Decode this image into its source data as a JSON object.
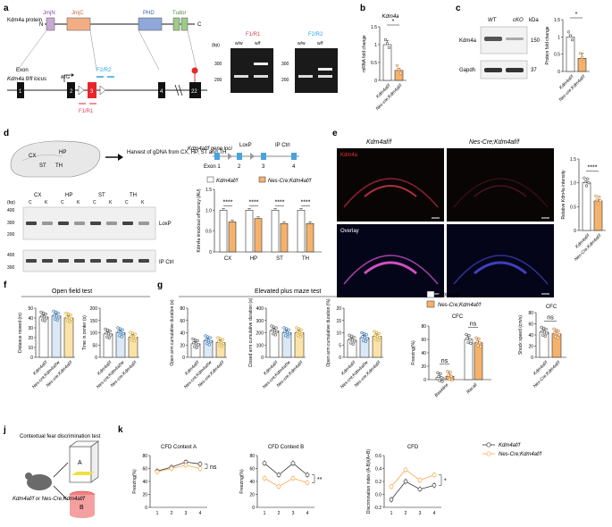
{
  "panels": {
    "a": "a",
    "b": "b",
    "c": "c",
    "d": "d",
    "e": "e",
    "f": "f",
    "g": "g",
    "h": "h",
    "i": "i",
    "j": "j",
    "k": "k"
  },
  "a": {
    "protein_label": "Kdm4a protein",
    "n": "N",
    "c": "C",
    "domains": [
      "JmjN",
      "JmjC",
      "PHD",
      "Tudor"
    ],
    "locus_label": "Kdm4a fl/fl locus",
    "exon": "Exon",
    "atg": "ATG",
    "exons": [
      "1",
      "2",
      "3",
      "4",
      "22"
    ],
    "primer_f2r2": "F2/R2",
    "primer_f1r1": "F1/R1",
    "gel_f1r1_title": "F1/R1",
    "gel_f2r2_title": "F2/R2",
    "gel_lanes": [
      "w/w",
      "w/f"
    ],
    "bp": "(bp)",
    "bp_ticks": [
      "300",
      "200",
      "300",
      "200"
    ]
  },
  "b": {
    "title": "Kdm4a",
    "ylabel": "mRNA fold change",
    "yticks": [
      "0",
      "0.5",
      "1",
      "1.5"
    ],
    "sig": "*",
    "groups": [
      "Kdm4af/f",
      "Nes-cre;Kdm4af/f"
    ]
  },
  "c": {
    "wt": "WT",
    "cko": "cKO",
    "kda": "kDa",
    "row1": "Kdm4a",
    "row2": "Gapdh",
    "mw1": "150",
    "mw2": "37",
    "ylabel": "Protein fold change",
    "yticks": [
      "0",
      "0.5",
      "1",
      "1.5"
    ],
    "sig": "*",
    "groups": [
      "Kdm4af/f",
      "Nes-cre;Kdm4af/f"
    ]
  },
  "d": {
    "regions": [
      "CX",
      "HP",
      "ST",
      "TH"
    ],
    "harvest": "Harvest of gDNA from CX, HP, ST and TH",
    "gene_loci": "Kdm4af/f gene loci",
    "loxp": "LoxP",
    "ipctrl": "IP Ctrl",
    "exon_row": [
      "Exon 1",
      "2",
      "3",
      "4"
    ],
    "gel_lanes": [
      "C",
      "K",
      "C",
      "K",
      "C",
      "K",
      "C",
      "K"
    ],
    "bp": "(bp)",
    "bp_ticks": [
      "400",
      "300",
      "200",
      "400",
      "300"
    ],
    "gel_labels": [
      "LoxP",
      "IP Ctrl"
    ],
    "legend": [
      "Kdm4af/f",
      "Nes-Cre;Kdm4af/f"
    ],
    "ylabel": "Kdm4a knockout efficiency (AU)",
    "yticks": [
      "0",
      "0.5",
      "1.0",
      "1.5"
    ],
    "sig": [
      "****",
      "****",
      "****",
      "****"
    ]
  },
  "e": {
    "title1": "Kdm4af/f",
    "title2": "Nes-Cre;Kdm4af/f",
    "kdm4a": "Kdm4a",
    "overlay": "Overlay",
    "ylabel": "Relative Kdm4a intensity",
    "yticks": [
      "0",
      "0.5",
      "1.0",
      "1.5"
    ],
    "sig": "****",
    "groups": [
      "Kdm4af/f",
      "Nes-Cre;Kdm4af/f"
    ]
  },
  "f": {
    "title": "Open field test",
    "ylabel1": "Distance moved (m)",
    "yticks1": [
      "0",
      "10",
      "20",
      "30",
      "40",
      "50"
    ],
    "ylabel2": "Time in center (s)",
    "yticks2": [
      "0",
      "50",
      "100",
      "150",
      "200"
    ],
    "groups": [
      "Kdm4af/f",
      "Nes-cre;Kdm4af/w",
      "Nes-cre;Kdm4af/f"
    ]
  },
  "g": {
    "title": "Elevated plus maze test",
    "ylabel1": "Open arm cumulative duration (s)",
    "yticks1": [
      "0",
      "20",
      "40",
      "60",
      "80"
    ],
    "ylabel2": "Closed arm cumulative duration (s)",
    "yticks2": [
      "0",
      "100",
      "200",
      "300",
      "400"
    ],
    "ylabel3": "Open arm cumulative duration (%)",
    "yticks3": [
      "0",
      "5",
      "10",
      "15",
      "20"
    ],
    "groups": [
      "Kdm4af/f",
      "Nes-cre;Kdm4af/w",
      "Nes-cre;Kdm4af/f"
    ]
  },
  "h": {
    "legend": [
      "Kdm4af/f",
      "Nes-Cre;Kdm4af/f"
    ],
    "title": "CFC",
    "ylabel": "Freezing(%)",
    "yticks": [
      "0",
      "20",
      "40",
      "60",
      "80"
    ],
    "x": [
      "Baseline",
      "Recall"
    ],
    "sig": [
      "ns",
      "ns"
    ]
  },
  "i": {
    "title": "CFC",
    "ylabel": "Shock speed (cm/s)",
    "yticks": [
      "0",
      "20",
      "40",
      "60",
      "80"
    ],
    "sig": "ns",
    "groups": [
      "Kdm4af/f",
      "Nes-Cre;Kdm4af/f"
    ]
  },
  "j": {
    "title": "Contextual fear discrimination test",
    "ctxA": "A",
    "ctxB": "B",
    "mouse": "Kdm4af/f or Nes-Cre;Kdm4af/f"
  },
  "k": {
    "titles": [
      "CFD Context A",
      "CFD Context B",
      "CFD"
    ],
    "ylabel1": "Freezing(%)",
    "ylabel2": "Freezing(%)",
    "ylabel3": "Discrimination index (A-B)/(A+B)",
    "yticks1": [
      "0",
      "20",
      "40",
      "60",
      "80"
    ],
    "yticks3": [
      "-0.2",
      "0.0",
      "0.2",
      "0.4",
      "0.6"
    ],
    "sig": [
      "ns",
      "**",
      "*"
    ],
    "legend": [
      "Kdm4af/f",
      "Nes-Cre;Kdm4af/f"
    ]
  },
  "colors": {
    "wt": "#ffffff",
    "cko": "#f5b26b",
    "cko_line": "#f5a54a",
    "wt_line": "#333333",
    "blue": "#4aa3df",
    "red_exon": "#e8262a"
  },
  "chart_data": [
    {
      "id": "b",
      "type": "bar",
      "title": "Kdm4a",
      "ylabel": "mRNA fold change",
      "categories": [
        "Kdm4af/f",
        "Nes-cre;Kdm4af/f"
      ],
      "values": [
        1.0,
        0.28
      ],
      "errors": [
        0.12,
        0.06
      ],
      "ylim": [
        0,
        1.5
      ]
    },
    {
      "id": "c",
      "type": "bar",
      "ylabel": "Protein fold change",
      "categories": [
        "Kdm4af/f",
        "Nes-cre;Kdm4af/f"
      ],
      "values": [
        1.0,
        0.38
      ],
      "errors": [
        0.06,
        0.15
      ],
      "ylim": [
        0,
        1.5
      ]
    },
    {
      "id": "d",
      "type": "bar",
      "ylabel": "Kdm4a knockout efficiency (AU)",
      "categories": [
        "CX",
        "HP",
        "ST",
        "TH"
      ],
      "series": [
        {
          "name": "Kdm4af/f",
          "values": [
            1.0,
            1.0,
            1.0,
            1.0
          ]
        },
        {
          "name": "Nes-Cre;Kdm4af/f",
          "values": [
            0.72,
            0.8,
            0.68,
            0.68
          ]
        }
      ],
      "ylim": [
        0,
        1.5
      ]
    },
    {
      "id": "e",
      "type": "bar",
      "ylabel": "Relative Kdm4a intensity",
      "categories": [
        "Kdm4af/f",
        "Nes-Cre;Kdm4af/f"
      ],
      "values": [
        1.0,
        0.62
      ],
      "ylim": [
        0,
        1.5
      ]
    },
    {
      "id": "f1",
      "type": "bar",
      "ylabel": "Distance moved (m)",
      "categories": [
        "Kdm4af/f",
        "Nes-cre;Kdm4af/w",
        "Nes-cre;Kdm4af/f"
      ],
      "values": [
        41,
        42,
        40
      ],
      "ylim": [
        0,
        50
      ]
    },
    {
      "id": "f2",
      "type": "bar",
      "ylabel": "Time in center (s)",
      "categories": [
        "Kdm4af/f",
        "Nes-cre;Kdm4af/w",
        "Nes-cre;Kdm4af/f"
      ],
      "values": [
        95,
        100,
        82
      ],
      "ylim": [
        0,
        200
      ]
    },
    {
      "id": "g1",
      "type": "bar",
      "ylabel": "Open arm cumulative duration (s)",
      "categories": [
        "Kdm4af/f",
        "Nes-cre;Kdm4af/w",
        "Nes-cre;Kdm4af/f"
      ],
      "values": [
        22,
        27,
        24
      ],
      "ylim": [
        0,
        80
      ]
    },
    {
      "id": "g2",
      "type": "bar",
      "ylabel": "Closed arm cumulative duration (s)",
      "categories": [
        "Kdm4af/f",
        "Nes-cre;Kdm4af/w",
        "Nes-cre;Kdm4af/f"
      ],
      "values": [
        215,
        200,
        200
      ],
      "ylim": [
        0,
        400
      ]
    },
    {
      "id": "g3",
      "type": "bar",
      "ylabel": "Open arm cumulative duration (%)",
      "categories": [
        "Kdm4af/f",
        "Nes-cre;Kdm4af/w",
        "Nes-cre;Kdm4af/f"
      ],
      "values": [
        7,
        8,
        8.5
      ],
      "ylim": [
        0,
        20
      ]
    },
    {
      "id": "h",
      "type": "bar",
      "title": "CFC",
      "ylabel": "Freezing(%)",
      "categories": [
        "Baseline",
        "Recall"
      ],
      "series": [
        {
          "name": "Kdm4af/f",
          "values": [
            3,
            60
          ]
        },
        {
          "name": "Nes-Cre;Kdm4af/f",
          "values": [
            5,
            55
          ]
        }
      ],
      "ylim": [
        0,
        80
      ]
    },
    {
      "id": "i",
      "type": "bar",
      "title": "CFC",
      "ylabel": "Shock speed (cm/s)",
      "categories": [
        "Kdm4af/f",
        "Nes-Cre;Kdm4af/f"
      ],
      "values": [
        45,
        42
      ],
      "ylim": [
        0,
        80
      ]
    },
    {
      "id": "k1",
      "type": "line",
      "title": "CFD Context A",
      "ylabel": "Freezing(%)",
      "x": [
        1,
        2,
        3,
        4
      ],
      "series": [
        {
          "name": "Kdm4af/f",
          "values": [
            56,
            62,
            70,
            67
          ]
        },
        {
          "name": "Nes-Cre;Kdm4af/f",
          "values": [
            55,
            60,
            65,
            60
          ]
        }
      ],
      "ylim": [
        0,
        80
      ]
    },
    {
      "id": "k2",
      "type": "line",
      "title": "CFD Context B",
      "ylabel": "Freezing(%)",
      "x": [
        1,
        2,
        3,
        4
      ],
      "series": [
        {
          "name": "Kdm4af/f",
          "values": [
            68,
            50,
            68,
            50
          ]
        },
        {
          "name": "Nes-Cre;Kdm4af/f",
          "values": [
            45,
            32,
            45,
            38
          ]
        }
      ],
      "ylim": [
        0,
        80
      ]
    },
    {
      "id": "k3",
      "type": "line",
      "title": "CFD",
      "ylabel": "Discrimination index (A-B)/(A+B)",
      "x": [
        1,
        2,
        3,
        4
      ],
      "series": [
        {
          "name": "Kdm4af/f",
          "values": [
            -0.08,
            0.2,
            0.08,
            0.14
          ]
        },
        {
          "name": "Nes-Cre;Kdm4af/f",
          "values": [
            0.12,
            0.38,
            0.22,
            0.3
          ]
        }
      ],
      "ylim": [
        -0.2,
        0.6
      ]
    }
  ]
}
